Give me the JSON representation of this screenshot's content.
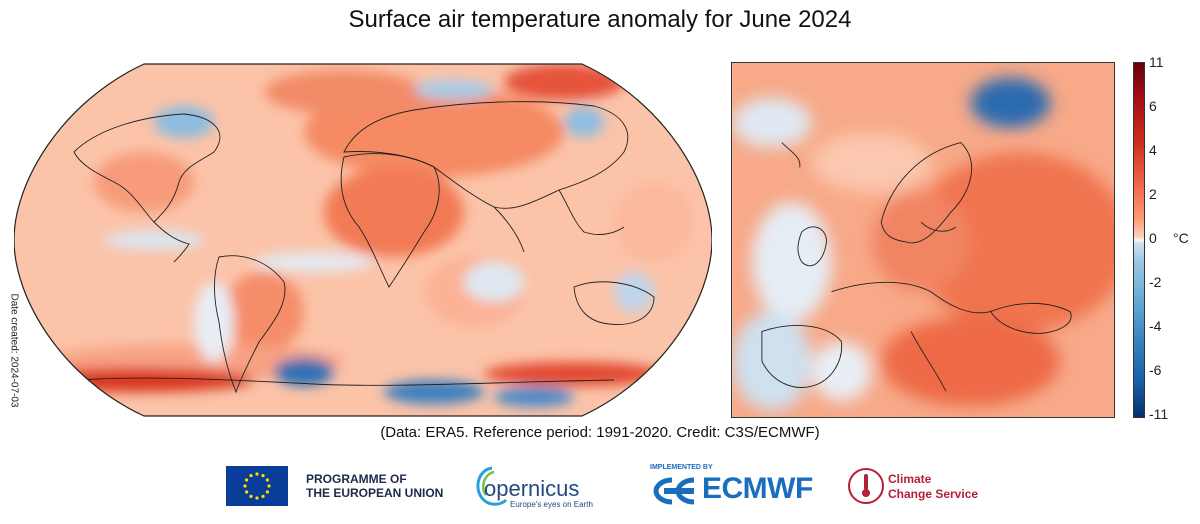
{
  "title": "Surface air temperature anomaly for June 2024",
  "date_created": "Date created: 2024-07-03",
  "credit": "(Data: ERA5.  Reference period: 1991-2020.  Credit: C3S/ECMWF)",
  "colorbar": {
    "unit": "°C",
    "ticks": [
      "11",
      "6",
      "4",
      "2",
      "0",
      "-2",
      "-4",
      "-6",
      "-11"
    ],
    "range": [
      -11,
      11
    ],
    "colors": {
      "max": "#67000d",
      "warm": "#ef6548",
      "neutral": "#f6f7f7",
      "cool": "#6aaed6",
      "min": "#08306b"
    }
  },
  "panels": {
    "world": {
      "projection": "robinson",
      "dominant_anomaly": "warm"
    },
    "europe": {
      "dominant_anomaly": "warm"
    }
  },
  "logos": {
    "eu_line1": "PROGRAMME OF",
    "eu_line2": "THE EUROPEAN UNION",
    "copernicus": "opernicus",
    "copernicus_tagline": "Europe's eyes on Earth",
    "implemented_by": "IMPLEMENTED BY",
    "ecmwf": "ECMWF",
    "c3s_line1": "Climate",
    "c3s_line2": "Change Service"
  }
}
